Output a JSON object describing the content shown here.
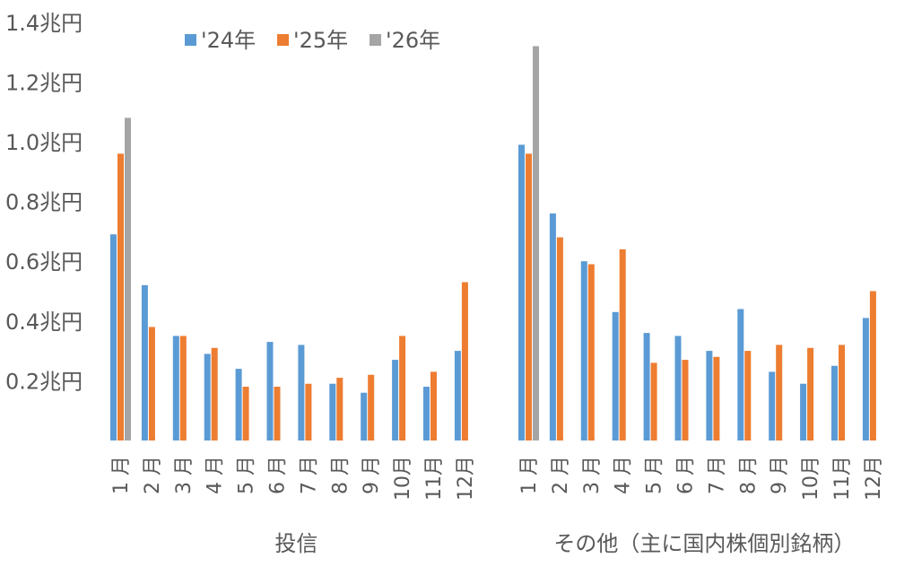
{
  "chart_data": {
    "type": "bar",
    "title": "",
    "xlabel": "",
    "ylabel": "",
    "ylim": [
      0,
      1.4
    ],
    "y_ticks": [
      {
        "value": 0.2,
        "label": "0.2兆円"
      },
      {
        "value": 0.4,
        "label": "0.4兆円"
      },
      {
        "value": 0.6,
        "label": "0.6兆円"
      },
      {
        "value": 0.8,
        "label": "0.8兆円"
      },
      {
        "value": 1.0,
        "label": "1.0兆円"
      },
      {
        "value": 1.2,
        "label": "1.2兆円"
      },
      {
        "value": 1.4,
        "label": "1.4兆円"
      }
    ],
    "grid": false,
    "legend_position": "top",
    "months": [
      "1 月",
      "2 月",
      "3 月",
      "4 月",
      "5 月",
      "6 月",
      "7 月",
      "8 月",
      "9 月",
      "10月",
      "11月",
      "12月"
    ],
    "series": [
      {
        "name": "'24年",
        "color": "#5B9BD5"
      },
      {
        "name": "'25年",
        "color": "#ED7D31"
      },
      {
        "name": "'26年",
        "color": "#A5A5A5"
      }
    ],
    "groups": [
      {
        "label": "投信",
        "values": [
          [
            0.69,
            0.52,
            0.35,
            0.29,
            0.24,
            0.33,
            0.32,
            0.19,
            0.16,
            0.27,
            0.18,
            0.3
          ],
          [
            0.96,
            0.38,
            0.35,
            0.31,
            0.18,
            0.18,
            0.19,
            0.21,
            0.22,
            0.35,
            0.23,
            0.53
          ],
          [
            1.08,
            null,
            null,
            null,
            null,
            null,
            null,
            null,
            null,
            null,
            null,
            null
          ]
        ]
      },
      {
        "label": "その他（主に国内株個別銘柄）",
        "values": [
          [
            0.99,
            0.76,
            0.6,
            0.43,
            0.36,
            0.35,
            0.3,
            0.44,
            0.23,
            0.19,
            0.25,
            0.41
          ],
          [
            0.96,
            0.68,
            0.59,
            0.64,
            0.26,
            0.27,
            0.28,
            0.3,
            0.32,
            0.31,
            0.32,
            0.5
          ],
          [
            1.32,
            null,
            null,
            null,
            null,
            null,
            null,
            null,
            null,
            null,
            null,
            null
          ]
        ]
      }
    ]
  }
}
